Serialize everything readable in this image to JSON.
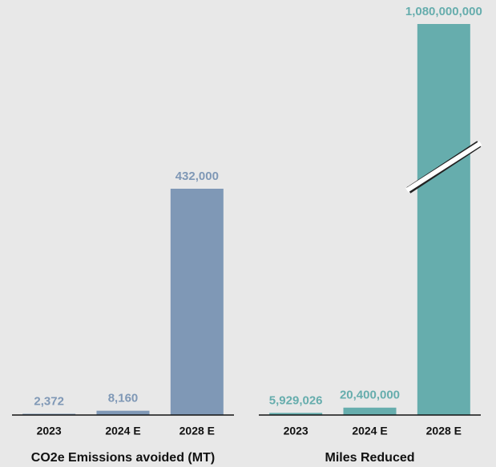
{
  "chart_data": [
    {
      "type": "bar",
      "title": "CO2e Emissions avoided (MT)",
      "categories": [
        "2023",
        "2024 E",
        "2028 E"
      ],
      "values": [
        2372,
        8160,
        432000
      ],
      "value_labels": [
        "2,372",
        "8,160",
        "432,000"
      ],
      "color": "#7f98b6",
      "axis_break": false
    },
    {
      "type": "bar",
      "title": "Miles Reduced",
      "categories": [
        "2023",
        "2024 E",
        "2028 E"
      ],
      "values": [
        5929026,
        20400000,
        1080000000
      ],
      "value_labels": [
        "5,929,026",
        "20,400,000",
        "1,080,000,000"
      ],
      "color": "#66adad",
      "axis_break": true
    }
  ]
}
